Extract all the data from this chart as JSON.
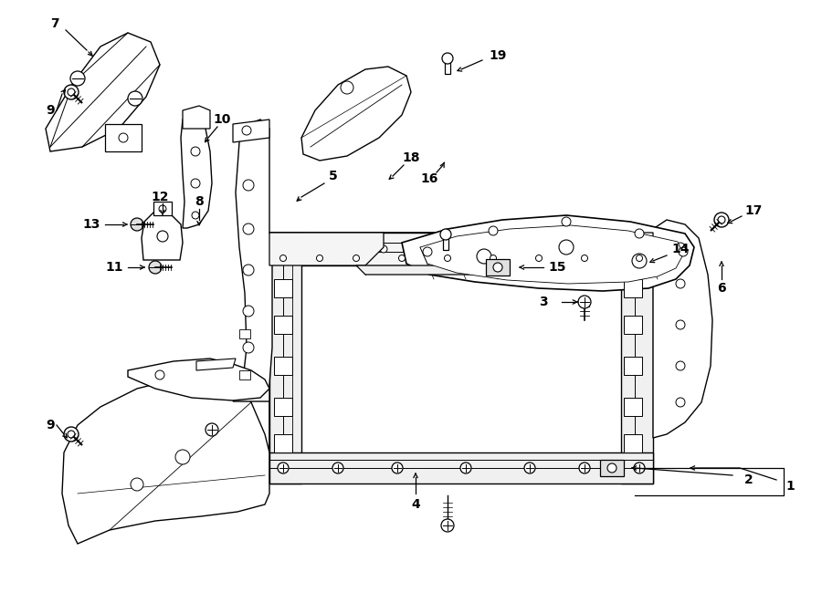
{
  "bg_color": "#ffffff",
  "line_color": "#000000",
  "fig_width": 9.0,
  "fig_height": 6.61,
  "dpi": 100,
  "lw": 0.9,
  "fs": 10
}
